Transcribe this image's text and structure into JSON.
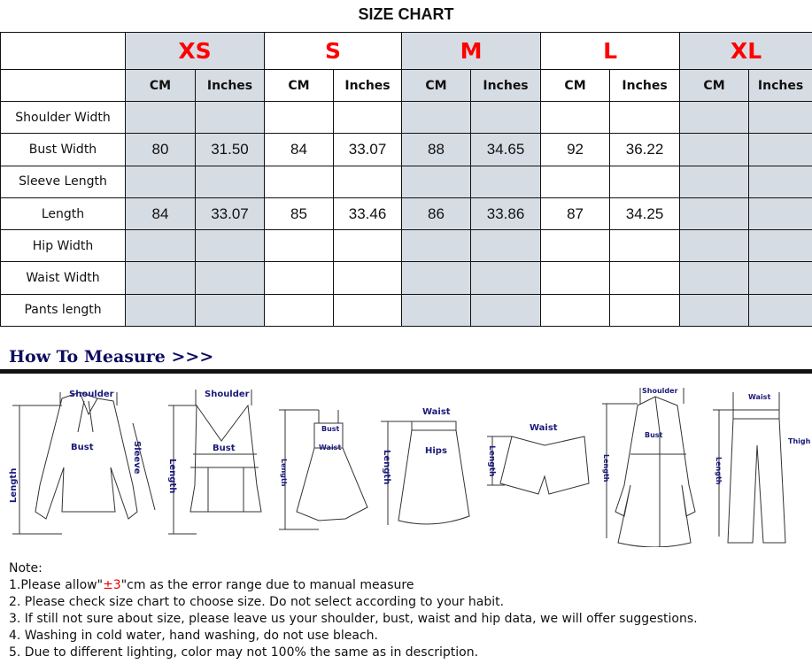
{
  "title": "SIZE CHART",
  "sizes": [
    "XS",
    "S",
    "M",
    "L",
    "XL"
  ],
  "units": [
    "CM",
    "Inches"
  ],
  "rows": [
    {
      "label": "Shoulder Width",
      "values": [
        "",
        "",
        "",
        "",
        "",
        "",
        "",
        "",
        "",
        ""
      ]
    },
    {
      "label": "Bust Width",
      "values": [
        "80",
        "31.50",
        "84",
        "33.07",
        "88",
        "34.65",
        "92",
        "36.22",
        "",
        ""
      ]
    },
    {
      "label": "Sleeve Length",
      "values": [
        "",
        "",
        "",
        "",
        "",
        "",
        "",
        "",
        "",
        ""
      ]
    },
    {
      "label": "Length",
      "values": [
        "84",
        "33.07",
        "85",
        "33.46",
        "86",
        "33.86",
        "87",
        "34.25",
        "",
        ""
      ]
    },
    {
      "label": "Hip Width",
      "values": [
        "",
        "",
        "",
        "",
        "",
        "",
        "",
        "",
        "",
        ""
      ]
    },
    {
      "label": "Waist Width",
      "values": [
        "",
        "",
        "",
        "",
        "",
        "",
        "",
        "",
        "",
        ""
      ]
    },
    {
      "label": "Pants length",
      "values": [
        "",
        "",
        "",
        "",
        "",
        "",
        "",
        "",
        "",
        ""
      ]
    }
  ],
  "colors": {
    "shaded": "#d6dce4",
    "size_label": "#ff0000",
    "measure_heading": "#0d0d5e"
  },
  "how_to_measure": {
    "heading": "How To Measure >>>",
    "labels": {
      "shoulder": "Shoulder",
      "bust": "Bust",
      "sleeve": "Sleeve",
      "length": "Length",
      "waist": "Waist",
      "hips": "Hips",
      "thigh": "Thigh"
    }
  },
  "notes": {
    "heading": "Note:",
    "line1_pre": "1.Please allow\"",
    "line1_red": "±3",
    "line1_post": "\"cm as the error range due to manual measure",
    "line2": "2. Please check size chart to choose size. Do not select according to your habit.",
    "line3": "3. If still not sure about size, please leave us your shoulder, bust, waist and hip data, we will offer suggestions.",
    "line4": "4. Washing in cold water, hand washing, do not use bleach.",
    "line5": "5. Due to different lighting, color may not 100% the same as in description."
  }
}
